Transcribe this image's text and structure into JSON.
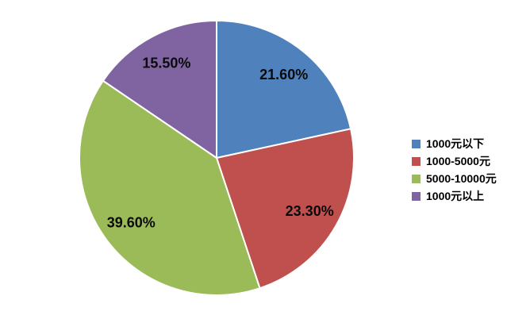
{
  "chart_data": {
    "type": "pie",
    "title": "",
    "labels": [
      "1000元以下",
      "1000-5000元",
      "5000-10000元",
      "1000元以上"
    ],
    "values": [
      21.6,
      23.3,
      39.6,
      15.5
    ],
    "display_labels": [
      "21.60%",
      "23.30%",
      "39.60%",
      "15.50%"
    ],
    "colors": [
      "#4F81BD",
      "#C0504D",
      "#9BBB59",
      "#8064A2"
    ],
    "start_angle_deg": 0,
    "direction": "clockwise",
    "legend_position": "right",
    "slice_border_color": "#FFFFFF",
    "label_color": "#0A0A0A",
    "background": "#FFFFFF"
  }
}
